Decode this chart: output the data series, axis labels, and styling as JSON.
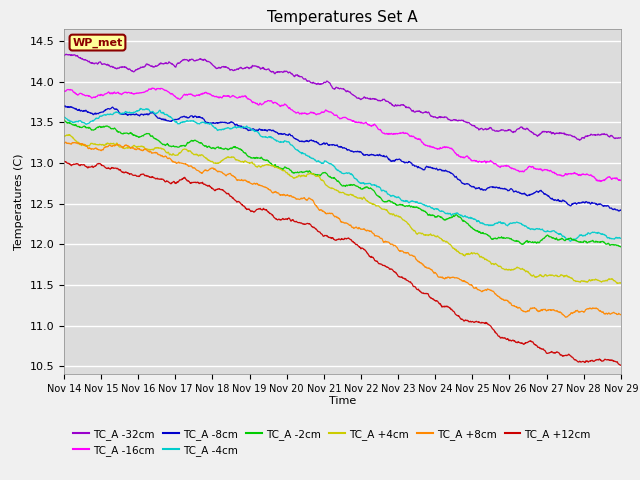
{
  "title": "Temperatures Set A",
  "xlabel": "Time",
  "ylabel": "Temperatures (C)",
  "ylim": [
    10.4,
    14.65
  ],
  "xlim": [
    0,
    15
  ],
  "yticks": [
    10.5,
    11.0,
    11.5,
    12.0,
    12.5,
    13.0,
    13.5,
    14.0,
    14.5
  ],
  "xtick_labels": [
    "Nov 14",
    "Nov 15",
    "Nov 16",
    "Nov 17",
    "Nov 18",
    "Nov 19",
    "Nov 20",
    "Nov 21",
    "Nov 22",
    "Nov 23",
    "Nov 24",
    "Nov 25",
    "Nov 26",
    "Nov 27",
    "Nov 28",
    "Nov 29"
  ],
  "background_color": "#dcdcdc",
  "wp_met_label": "WP_met",
  "series": [
    {
      "label": "TC_A -32cm",
      "color": "#9900cc",
      "start": 14.31,
      "mid": 14.0,
      "drop_x": 0.62,
      "drop_amt": 0.95,
      "end": 13.33,
      "steep": 7,
      "recover": 0.0,
      "second_drop": 0.0
    },
    {
      "label": "TC_A -16cm",
      "color": "#ff00ff",
      "start": 13.88,
      "mid": 13.7,
      "drop_x": 0.6,
      "drop_amt": 1.05,
      "end": 12.78,
      "steep": 7,
      "recover": 0.0,
      "second_drop": 0.0
    },
    {
      "label": "TC_A -8cm",
      "color": "#0000cc",
      "start": 13.68,
      "mid": 13.6,
      "drop_x": 0.58,
      "drop_amt": 1.2,
      "end": 12.42,
      "steep": 8,
      "recover": 0.0,
      "second_drop": 0.0
    },
    {
      "label": "TC_A -4cm",
      "color": "#00cccc",
      "start": 13.55,
      "mid": 13.55,
      "drop_x": 0.54,
      "drop_amt": 1.4,
      "end": 12.08,
      "steep": 9,
      "recover": 0.0,
      "second_drop": 0.0
    },
    {
      "label": "TC_A -2cm",
      "color": "#00cc00",
      "start": 13.52,
      "mid": 13.52,
      "drop_x": 0.52,
      "drop_amt": 1.45,
      "end": 11.98,
      "steep": 9,
      "recover": 0.0,
      "second_drop": 0.0
    },
    {
      "label": "TC_A +4cm",
      "color": "#cccc00",
      "start": 13.32,
      "mid": 13.32,
      "drop_x": 0.45,
      "drop_amt": 1.1,
      "end": 11.55,
      "steep": 10,
      "recover": 0.35,
      "second_drop": 0.65
    },
    {
      "label": "TC_A +8cm",
      "color": "#ff8800",
      "start": 13.25,
      "mid": 13.1,
      "drop_x": 0.4,
      "drop_amt": 1.2,
      "end": 11.15,
      "steep": 10,
      "recover": 0.3,
      "second_drop": 0.6
    },
    {
      "label": "TC_A +12cm",
      "color": "#cc0000",
      "start": 13.02,
      "mid": 13.02,
      "drop_x": 0.38,
      "drop_amt": 1.55,
      "end": 10.52,
      "steep": 12,
      "recover": 0.45,
      "second_drop": 0.72
    }
  ]
}
